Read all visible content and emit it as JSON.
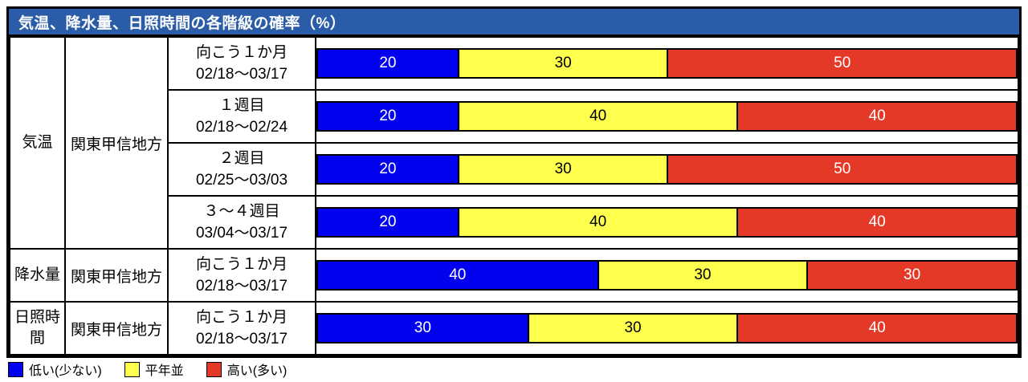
{
  "title": "気温、降水量、日照時間の各階級の確率（%）",
  "colors": {
    "header_bg": "#2B5CA8",
    "low": "#0202EE",
    "normal": "#FFFF4E",
    "high": "#E53928",
    "border": "#000000"
  },
  "seg_text_colors": [
    "#FFFFFF",
    "#000000",
    "#FFFFFF"
  ],
  "rows": [
    {
      "element": "気温",
      "region": "関東甲信地方",
      "period": "向こう１か月",
      "dates": "02/18～03/17",
      "values": [
        20,
        30,
        50
      ]
    },
    {
      "period": "１週目",
      "dates": "02/18～02/24",
      "values": [
        20,
        40,
        40
      ]
    },
    {
      "period": "２週目",
      "dates": "02/25～03/03",
      "values": [
        20,
        30,
        50
      ]
    },
    {
      "period": "３～４週目",
      "dates": "03/04～03/17",
      "values": [
        20,
        40,
        40
      ]
    },
    {
      "element": "降水量",
      "region": "関東甲信地方",
      "period": "向こう１か月",
      "dates": "02/18～03/17",
      "values": [
        40,
        30,
        30
      ]
    },
    {
      "element": "日照時間",
      "region": "関東甲信地方",
      "period": "向こう１か月",
      "dates": "02/18～03/17",
      "values": [
        30,
        30,
        40
      ]
    }
  ],
  "legend": [
    {
      "label": "低い(少ない)",
      "color_key": "low"
    },
    {
      "label": "平年並",
      "color_key": "normal"
    },
    {
      "label": "高い(多い)",
      "color_key": "high"
    }
  ],
  "chart_data": {
    "type": "bar",
    "variant": "horizontal-stacked",
    "title": "気温、降水量、日照時間の各階級の確率（%）",
    "categories": [
      "気温 関東甲信地方 向こう１か月 02/18～03/17",
      "気温 関東甲信地方 １週目 02/18～02/24",
      "気温 関東甲信地方 ２週目 02/25～03/03",
      "気温 関東甲信地方 ３～４週目 03/04～03/17",
      "降水量 関東甲信地方 向こう１か月 02/18～03/17",
      "日照時間 関東甲信地方 向こう１か月 02/18～03/17"
    ],
    "series": [
      {
        "name": "低い(少ない)",
        "color": "#0202EE",
        "values": [
          20,
          20,
          20,
          20,
          40,
          30
        ]
      },
      {
        "name": "平年並",
        "color": "#FFFF4E",
        "values": [
          30,
          40,
          30,
          40,
          30,
          30
        ]
      },
      {
        "name": "高い(多い)",
        "color": "#E53928",
        "values": [
          50,
          40,
          50,
          40,
          30,
          40
        ]
      }
    ],
    "xlim": [
      0,
      100
    ],
    "grid": false,
    "legend_position": "bottom-left"
  }
}
